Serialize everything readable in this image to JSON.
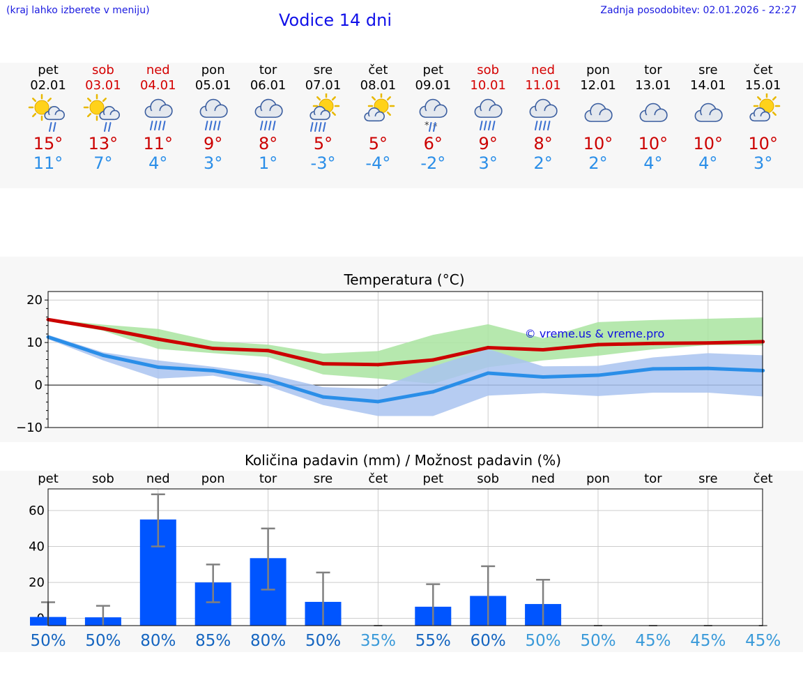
{
  "header": {
    "menu_hint": "(kraj lahko izberete v meniju)",
    "title": "Vodice 14 dni",
    "updated": "Zadnja posodobitev: 02.01.2026 - 22:27"
  },
  "colors": {
    "weekend": "#d40000",
    "max_temp": "#cc0000",
    "min_temp": "#2a8ee8",
    "max_band": "#a9e4a0",
    "min_band": "#a9c3f0",
    "bar": "#0055ff"
  },
  "days": [
    {
      "name": "pet",
      "date": "02.01",
      "weekend": false,
      "icon": "sun-cloud-rain-icon",
      "tmax": "15°",
      "tmin": "11°"
    },
    {
      "name": "sob",
      "date": "03.01",
      "weekend": true,
      "icon": "sun-cloud-rain-icon",
      "tmax": "13°",
      "tmin": "7°"
    },
    {
      "name": "ned",
      "date": "04.01",
      "weekend": true,
      "icon": "cloud-heavy-rain-icon",
      "tmax": "11°",
      "tmin": "4°"
    },
    {
      "name": "pon",
      "date": "05.01",
      "weekend": false,
      "icon": "cloud-heavy-rain-icon",
      "tmax": "9°",
      "tmin": "3°"
    },
    {
      "name": "tor",
      "date": "06.01",
      "weekend": false,
      "icon": "cloud-heavy-rain-icon",
      "tmax": "8°",
      "tmin": "1°"
    },
    {
      "name": "sre",
      "date": "07.01",
      "weekend": false,
      "icon": "sun-cloud-heavy-rain-icon",
      "tmax": "5°",
      "tmin": "-3°"
    },
    {
      "name": "čet",
      "date": "08.01",
      "weekend": false,
      "icon": "sun-cloud-icon",
      "tmax": "5°",
      "tmin": "-4°"
    },
    {
      "name": "pet",
      "date": "09.01",
      "weekend": false,
      "icon": "cloud-sleet-icon",
      "tmax": "6°",
      "tmin": "-2°"
    },
    {
      "name": "sob",
      "date": "10.01",
      "weekend": true,
      "icon": "cloud-heavy-rain-icon",
      "tmax": "9°",
      "tmin": "3°"
    },
    {
      "name": "ned",
      "date": "11.01",
      "weekend": true,
      "icon": "cloud-heavy-rain-icon",
      "tmax": "8°",
      "tmin": "2°"
    },
    {
      "name": "pon",
      "date": "12.01",
      "weekend": false,
      "icon": "cloud-icon",
      "tmax": "10°",
      "tmin": "2°"
    },
    {
      "name": "tor",
      "date": "13.01",
      "weekend": false,
      "icon": "cloud-icon",
      "tmax": "10°",
      "tmin": "4°"
    },
    {
      "name": "sre",
      "date": "14.01",
      "weekend": false,
      "icon": "cloud-icon",
      "tmax": "10°",
      "tmin": "4°"
    },
    {
      "name": "čet",
      "date": "15.01",
      "weekend": false,
      "icon": "sun-cloud-icon",
      "tmax": "10°",
      "tmin": "3°"
    }
  ],
  "chart_data": [
    {
      "type": "line",
      "title": "Temperatura (°C)",
      "ylim": [
        -10,
        22
      ],
      "yticks": [
        "20",
        "10",
        "0",
        "−10"
      ],
      "ytick_values": [
        20,
        10,
        0,
        -10
      ],
      "watermark": "© vreme.us & vreme.pro",
      "series": [
        {
          "name": "max",
          "values": [
            15.4,
            13.3,
            10.8,
            8.6,
            8.1,
            5.0,
            4.8,
            5.9,
            8.8,
            8.3,
            9.5,
            9.8,
            9.9,
            10.2
          ],
          "band_high": [
            15.5,
            14.2,
            13.2,
            10.3,
            9.5,
            7.4,
            8.0,
            11.8,
            14.3,
            11.0,
            14.8,
            15.3,
            15.6,
            15.9
          ],
          "band_low": [
            15.0,
            12.8,
            8.5,
            7.5,
            6.6,
            2.5,
            1.5,
            0.3,
            4.2,
            5.8,
            6.9,
            8.4,
            9.4,
            9.3
          ]
        },
        {
          "name": "min",
          "values": [
            11.3,
            7.0,
            4.2,
            3.4,
            1.2,
            -2.8,
            -3.9,
            -1.6,
            2.8,
            1.9,
            2.3,
            3.8,
            3.9,
            3.4
          ],
          "band_high": [
            11.8,
            7.7,
            5.8,
            4.3,
            2.6,
            -0.5,
            -0.9,
            4.4,
            8.5,
            4.4,
            4.5,
            6.5,
            7.5,
            7.0
          ],
          "band_low": [
            10.8,
            5.8,
            1.5,
            2.2,
            -0.3,
            -4.7,
            -7.3,
            -7.3,
            -2.5,
            -1.9,
            -2.6,
            -1.8,
            -1.8,
            -2.7
          ]
        }
      ]
    },
    {
      "type": "bar",
      "title": "Količina padavin (mm) / Možnost padavin (%)",
      "categories": [
        "pet",
        "sob",
        "ned",
        "pon",
        "tor",
        "sre",
        "čet",
        "pet",
        "sob",
        "ned",
        "pon",
        "tor",
        "sre",
        "čet"
      ],
      "ylim": [
        -4,
        72
      ],
      "yticks": [
        "60",
        "40",
        "20",
        "0"
      ],
      "ytick_values": [
        60,
        40,
        20,
        0
      ],
      "values": [
        0.8,
        0.6,
        55,
        20,
        33.5,
        9.2,
        0,
        6.5,
        12.5,
        8,
        0,
        0,
        0,
        0
      ],
      "err_high": [
        9,
        7,
        69,
        30,
        50,
        25.5,
        0,
        19,
        29,
        21.5,
        0,
        0,
        0,
        0
      ],
      "err_low": [
        0,
        0,
        40,
        9,
        16,
        0,
        0,
        0,
        0,
        0,
        0,
        0,
        0,
        0
      ],
      "probability": [
        "50%",
        "50%",
        "80%",
        "85%",
        "80%",
        "50%",
        "35%",
        "55%",
        "60%",
        "50%",
        "50%",
        "45%",
        "45%",
        "45%"
      ],
      "probability_colors": [
        "#1565c0",
        "#1565c0",
        "#1565c0",
        "#1565c0",
        "#1565c0",
        "#1565c0",
        "#3a9ad9",
        "#1565c0",
        "#1565c0",
        "#3a9ad9",
        "#3a9ad9",
        "#3a9ad9",
        "#3a9ad9",
        "#3a9ad9"
      ]
    }
  ]
}
